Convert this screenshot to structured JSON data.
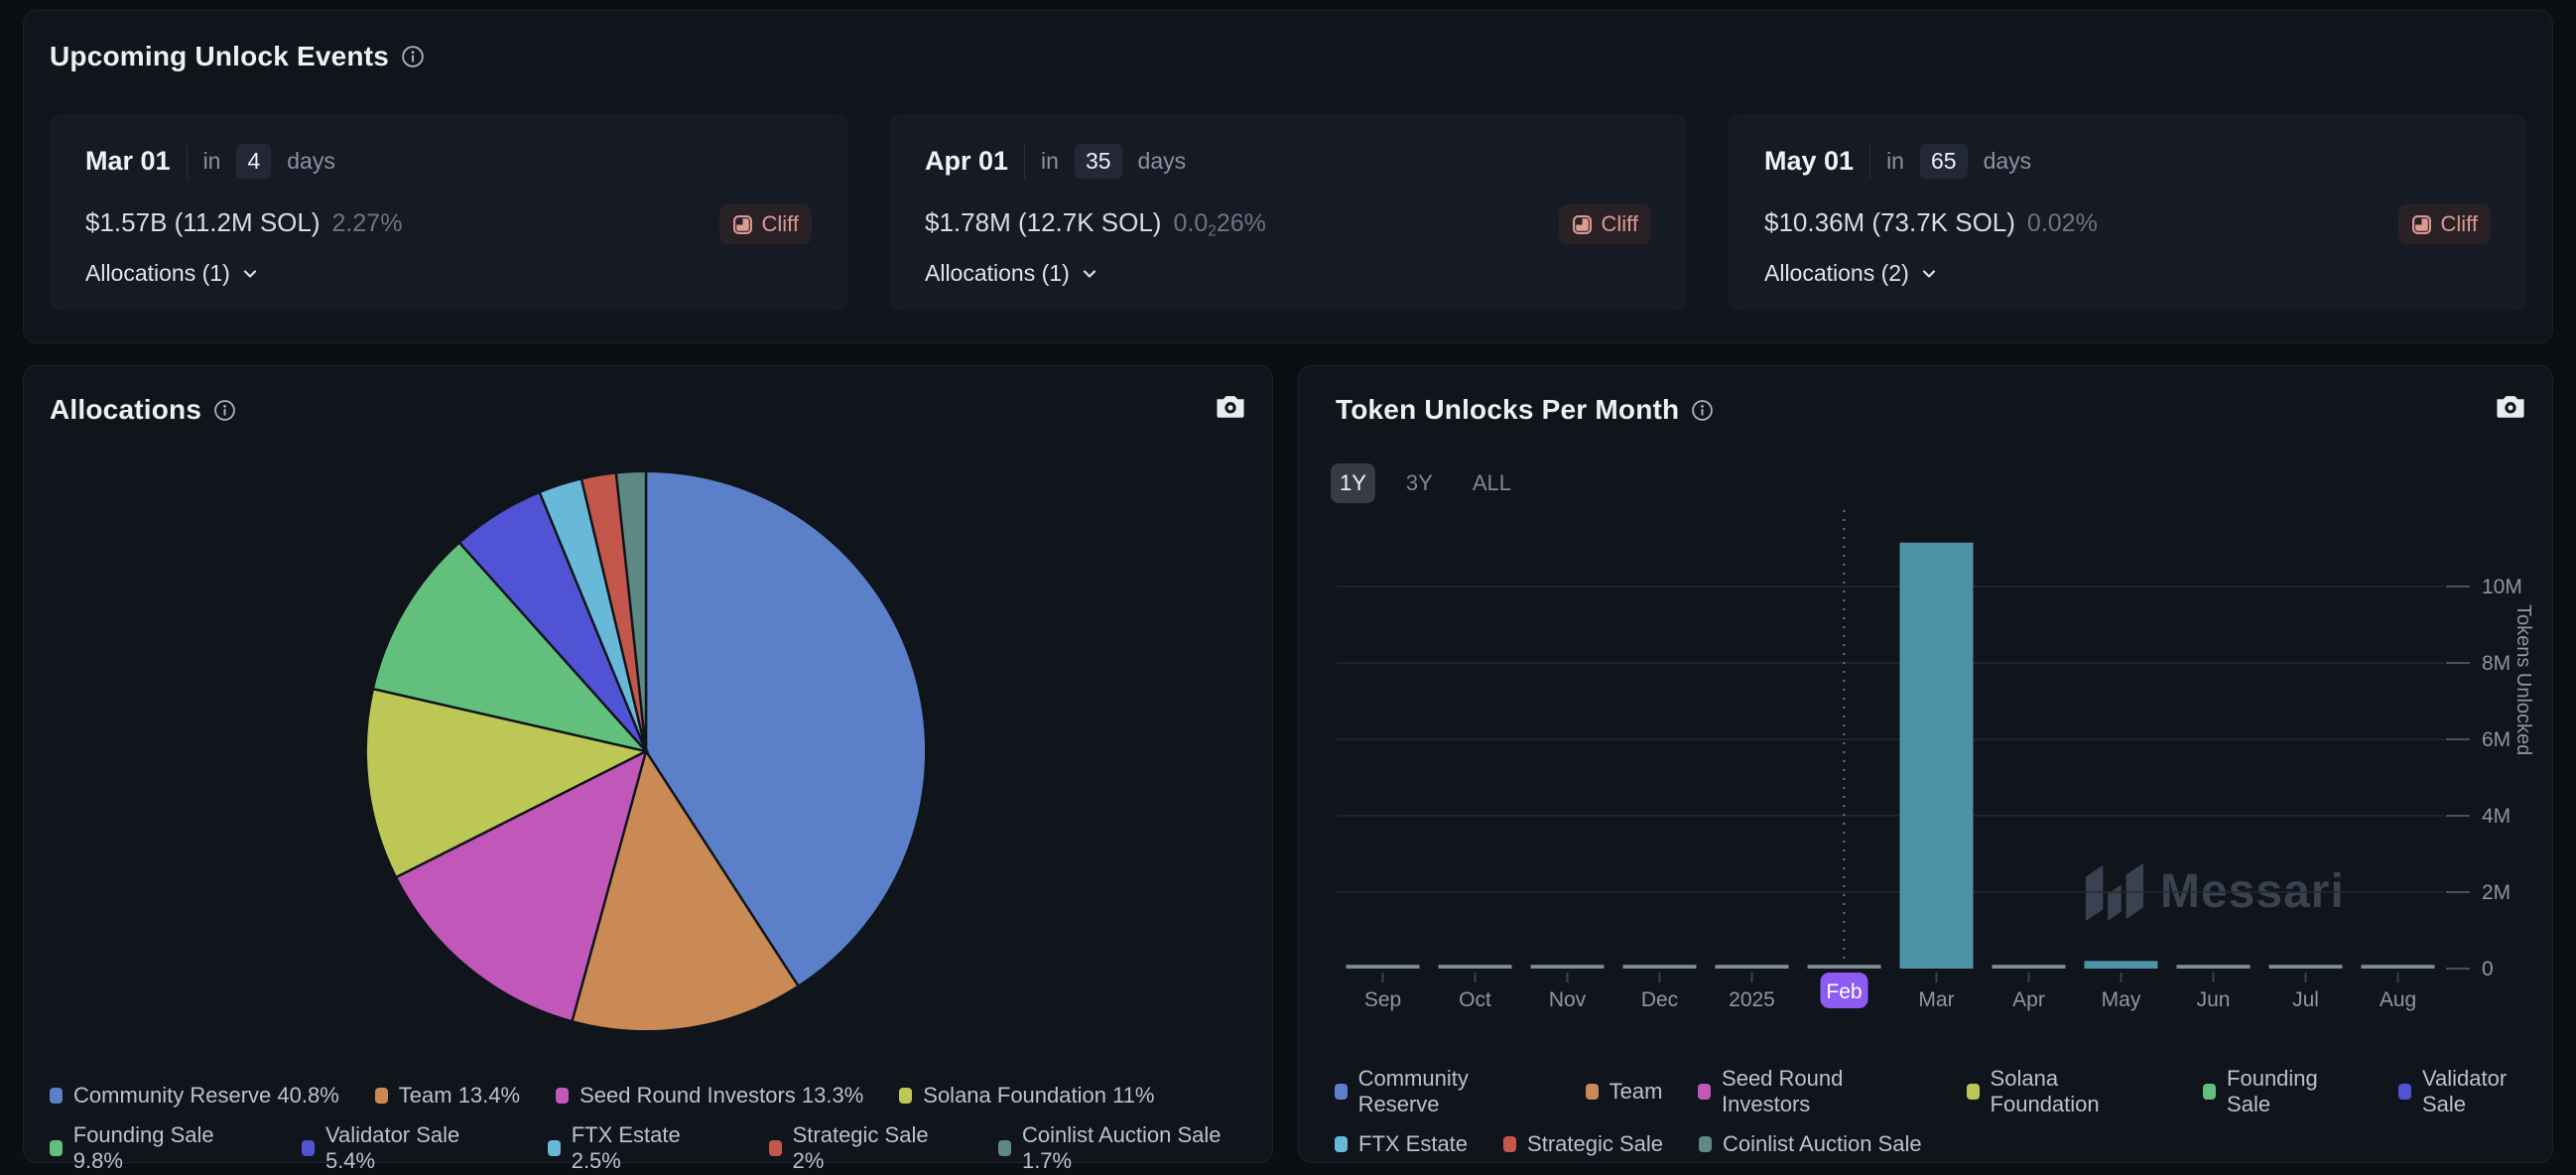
{
  "upcoming": {
    "title": "Upcoming Unlock Events",
    "events": [
      {
        "date": "Mar 01",
        "in_label": "in",
        "days": "4",
        "days_label": "days",
        "amount": "$1.57B (11.2M SOL)",
        "pct_pre": "2.27%",
        "pct_sub": "",
        "pct_post": "",
        "badge": "Cliff",
        "allocations_label": "Allocations (1)"
      },
      {
        "date": "Apr 01",
        "in_label": "in",
        "days": "35",
        "days_label": "days",
        "amount": "$1.78M (12.7K SOL)",
        "pct_pre": "0.0",
        "pct_sub": "2",
        "pct_post": "26%",
        "badge": "Cliff",
        "allocations_label": "Allocations (1)"
      },
      {
        "date": "May 01",
        "in_label": "in",
        "days": "65",
        "days_label": "days",
        "amount": "$10.36M (73.7K SOL)",
        "pct_pre": "0.02%",
        "pct_sub": "",
        "pct_post": "",
        "badge": "Cliff",
        "allocations_label": "Allocations (2)"
      }
    ]
  },
  "unlocks_panel": {
    "ranges": [
      {
        "label": "1Y",
        "selected": true
      },
      {
        "label": "3Y",
        "selected": false
      },
      {
        "label": "ALL",
        "selected": false
      }
    ],
    "watermark": "Messari"
  },
  "chart_data": [
    {
      "type": "pie",
      "title": "Allocations",
      "legend_position": "bottom",
      "slices": [
        {
          "label": "Community Reserve",
          "pct": 40.8,
          "pct_label": "40.8%",
          "color": "#5b7fc9"
        },
        {
          "label": "Team",
          "pct": 13.4,
          "pct_label": "13.4%",
          "color": "#c98a55"
        },
        {
          "label": "Seed Round Investors",
          "pct": 13.3,
          "pct_label": "13.3%",
          "color": "#c257ba"
        },
        {
          "label": "Solana Foundation",
          "pct": 11.0,
          "pct_label": "11%",
          "color": "#bdc756"
        },
        {
          "label": "Founding Sale",
          "pct": 9.8,
          "pct_label": "9.8%",
          "color": "#63c07c"
        },
        {
          "label": "Validator Sale",
          "pct": 5.4,
          "pct_label": "5.4%",
          "color": "#5053d4"
        },
        {
          "label": "FTX Estate",
          "pct": 2.5,
          "pct_label": "2.5%",
          "color": "#68b9d8"
        },
        {
          "label": "Strategic Sale",
          "pct": 2.0,
          "pct_label": "2%",
          "color": "#c4574c"
        },
        {
          "label": "Coinlist Auction Sale",
          "pct": 1.7,
          "pct_label": "1.7%",
          "color": "#5d8a84"
        }
      ],
      "legend_row_split": 4
    },
    {
      "type": "bar",
      "title": "Token Unlocks Per Month",
      "ylabel": "Tokens Unlocked",
      "ytick_values_m": [
        0,
        2,
        4,
        6,
        8,
        10
      ],
      "ytick_labels": [
        "0",
        "2M",
        "4M",
        "6M",
        "8M",
        "10M"
      ],
      "ylim_m": [
        0,
        11.8
      ],
      "categories": [
        "Sep",
        "Oct",
        "Nov",
        "Dec",
        "2025",
        "Feb",
        "Mar",
        "Apr",
        "May",
        "Jun",
        "Jul",
        "Aug"
      ],
      "values_m": [
        0.1,
        0.1,
        0.1,
        0.1,
        0.1,
        0.1,
        11.15,
        0.1,
        0.2,
        0.1,
        0.1,
        0.1
      ],
      "bar_color_keys": [
        "muted",
        "muted",
        "muted",
        "muted",
        "muted",
        "muted",
        "highlight",
        "muted",
        "highlight",
        "muted",
        "muted",
        "muted"
      ],
      "current_month": "Feb",
      "colors": {
        "highlight": "#4d92a7",
        "muted": "#7d8b93",
        "current_badge": "#8c5cf2",
        "dotted_line": "#7a5fd0",
        "grid": "#232a34",
        "tick": "#4a515c",
        "axis_text": "#8f95a1",
        "month_tick": "#3b424e",
        "current_tick": "#d0d4db"
      },
      "legend": [
        {
          "label": "Community Reserve",
          "color": "#5b7fc9"
        },
        {
          "label": "Team",
          "color": "#c98a55"
        },
        {
          "label": "Seed Round Investors",
          "color": "#c257ba"
        },
        {
          "label": "Solana Foundation",
          "color": "#bdc756"
        },
        {
          "label": "Founding Sale",
          "color": "#63c07c"
        },
        {
          "label": "Validator Sale",
          "color": "#5053d4"
        },
        {
          "label": "FTX Estate",
          "color": "#68b9d8"
        },
        {
          "label": "Strategic Sale",
          "color": "#c4574c"
        },
        {
          "label": "Coinlist Auction Sale",
          "color": "#5d8a84"
        }
      ],
      "legend_row_split": 6
    }
  ]
}
